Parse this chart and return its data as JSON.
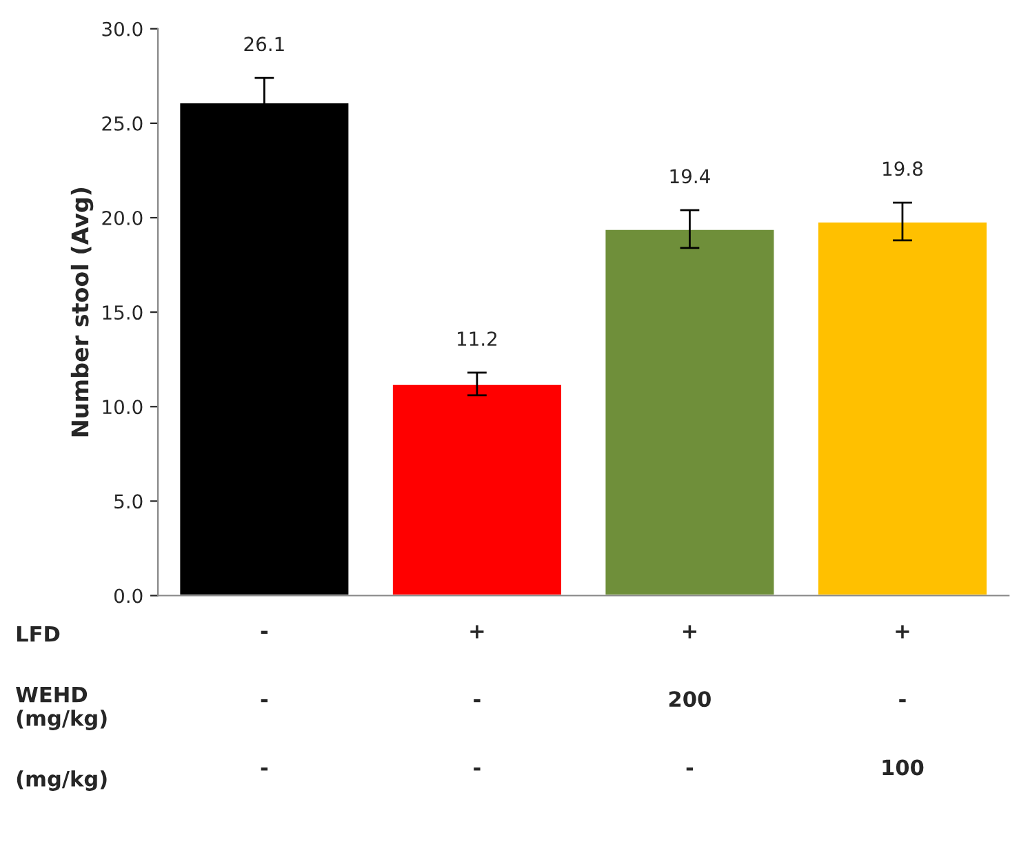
{
  "chart_data": {
    "type": "bar",
    "ylabel": "Number stool (Avg)",
    "categories": [
      "-\n-\n-",
      "+\n-\n-",
      "+\n200\n-",
      "+\n-\n100"
    ],
    "values": [
      26.1,
      11.2,
      19.4,
      19.8
    ],
    "errors": [
      1.3,
      0.6,
      1.0,
      1.0
    ],
    "colors": [
      "#000000",
      "#ff0000",
      "#6f8f3a",
      "#ffc000"
    ],
    "data_labels": true,
    "ylim": [
      0,
      30
    ],
    "yticks": [
      {
        "value": 0,
        "label": "0.0"
      },
      {
        "value": 5,
        "label": "5.0"
      },
      {
        "value": 10,
        "label": "10.0"
      },
      {
        "value": 15,
        "label": "15.0"
      },
      {
        "value": 20,
        "label": "20.0"
      },
      {
        "value": 25,
        "label": "25.0"
      },
      {
        "value": 30,
        "label": "30.0"
      }
    ],
    "grid": false,
    "legend": false,
    "annotations": [
      "LFD",
      "WEHD\n(mg/kg)",
      "(mg/kg)"
    ]
  }
}
